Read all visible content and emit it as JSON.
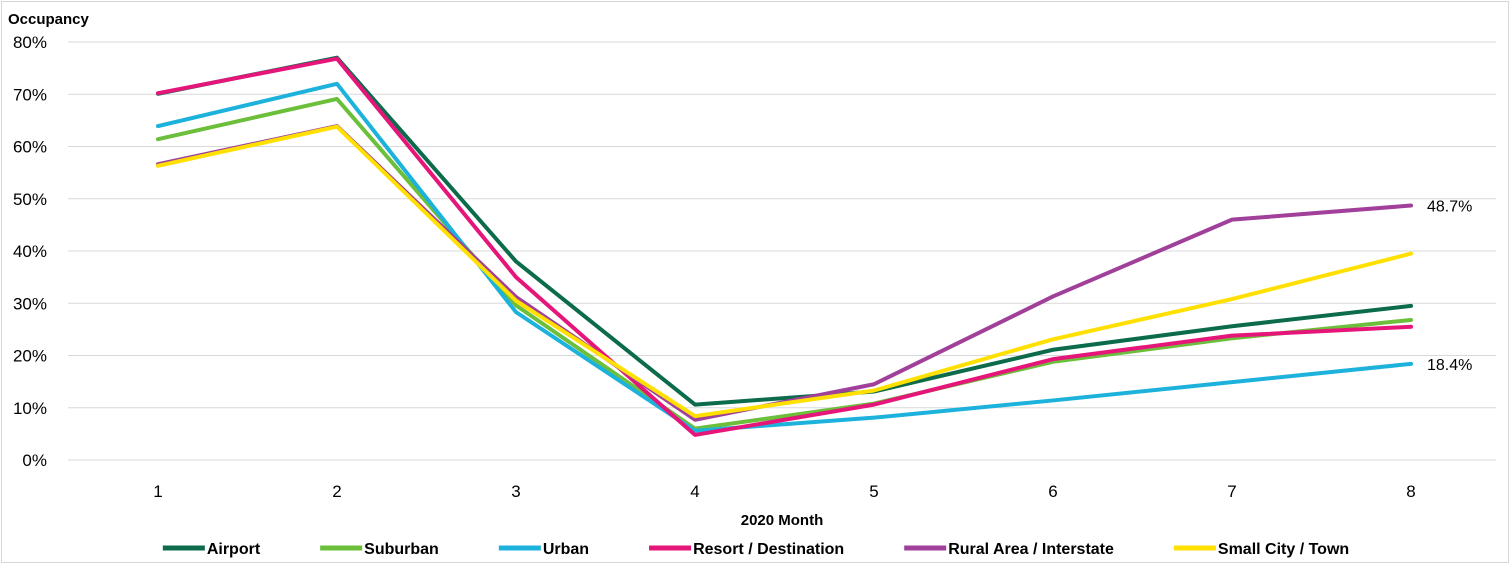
{
  "chart_data": {
    "type": "line",
    "ylabel": "Occupancy",
    "xlabel": "2020 Month",
    "x": [
      1,
      2,
      3,
      4,
      5,
      6,
      7,
      8
    ],
    "ylim": [
      0,
      80
    ],
    "yticks": [
      "0%",
      "10%",
      "20%",
      "30%",
      "40%",
      "50%",
      "60%",
      "70%",
      "80%"
    ],
    "grid": true,
    "legend_position": "bottom",
    "series": [
      {
        "name": "Airport",
        "color": "#0b6b4a",
        "values": [
          70.1,
          77.0,
          38.0,
          10.6,
          13.1,
          21.1,
          25.6,
          29.5
        ]
      },
      {
        "name": "Suburban",
        "color": "#6cbf3a",
        "values": [
          61.4,
          69.1,
          29.6,
          6.0,
          10.8,
          18.8,
          23.3,
          26.8
        ]
      },
      {
        "name": "Urban",
        "color": "#1cb2dc",
        "values": [
          63.9,
          72.0,
          28.3,
          5.6,
          8.1,
          11.4,
          14.9,
          18.4
        ]
      },
      {
        "name": "Resort / Destination",
        "color": "#e5157a",
        "values": [
          70.2,
          76.8,
          35.0,
          4.8,
          10.6,
          19.3,
          23.8,
          25.5
        ]
      },
      {
        "name": "Rural Area / Interstate",
        "color": "#a0409a",
        "values": [
          56.6,
          63.9,
          31.2,
          7.7,
          14.5,
          31.3,
          46.0,
          48.7
        ]
      },
      {
        "name": "Small City / Town",
        "color": "#ffe000",
        "values": [
          56.3,
          63.8,
          30.5,
          8.4,
          13.3,
          23.1,
          30.8,
          39.5
        ]
      }
    ],
    "annotations": [
      {
        "series": "Rural Area / Interstate",
        "x": 8,
        "text": "48.7%"
      },
      {
        "series": "Urban",
        "x": 8,
        "text": "18.4%"
      }
    ]
  }
}
